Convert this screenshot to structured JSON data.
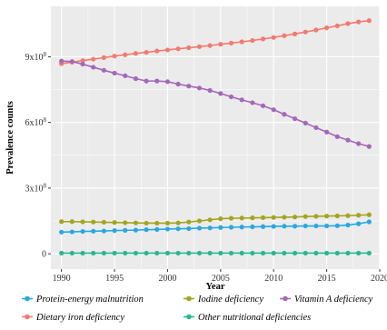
{
  "chart_data": {
    "type": "line",
    "xlabel": "Year",
    "ylabel": "Prevalence counts",
    "xlim": [
      1989,
      2020
    ],
    "ylim": [
      -70000000,
      1130000000
    ],
    "x_ticks": [
      1990,
      1995,
      2000,
      2005,
      2010,
      2015,
      2020
    ],
    "y_ticks": [
      0,
      300000000,
      600000000,
      900000000
    ],
    "y_tick_labels": [
      "0",
      "3x10⁸",
      "6x10⁸",
      "9x10⁸"
    ],
    "grid": true,
    "legend_position": "bottom",
    "x": [
      1990,
      1991,
      1992,
      1993,
      1994,
      1995,
      1996,
      1997,
      1998,
      1999,
      2000,
      2001,
      2002,
      2003,
      2004,
      2005,
      2006,
      2007,
      2008,
      2009,
      2010,
      2011,
      2012,
      2013,
      2014,
      2015,
      2016,
      2017,
      2018,
      2019
    ],
    "series": [
      {
        "name": "Protein-energy malnutrition",
        "color": "#29a8e0",
        "values": [
          99000000,
          100000000,
          102000000,
          103000000,
          104000000,
          106000000,
          107000000,
          108000000,
          110000000,
          111000000,
          113000000,
          114000000,
          115000000,
          117000000,
          118000000,
          120000000,
          121000000,
          122000000,
          123000000,
          124000000,
          125000000,
          126000000,
          126000000,
          127000000,
          127000000,
          127000000,
          128000000,
          131000000,
          137000000,
          146000000
        ]
      },
      {
        "name": "Dietary iron deficiency",
        "color": "#f27a70",
        "values": [
          868000000,
          875000000,
          882000000,
          889000000,
          896000000,
          903000000,
          909000000,
          915000000,
          920000000,
          926000000,
          931000000,
          936000000,
          941000000,
          946000000,
          951000000,
          957000000,
          962000000,
          968000000,
          974000000,
          981000000,
          988000000,
          996000000,
          1004000000,
          1013000000,
          1022000000,
          1032000000,
          1041000000,
          1051000000,
          1059000000,
          1065000000
        ]
      },
      {
        "name": "Iodine deficiency",
        "color": "#a3a51e",
        "values": [
          147000000,
          147000000,
          146000000,
          145000000,
          144000000,
          143000000,
          142000000,
          141000000,
          140000000,
          140000000,
          140000000,
          141000000,
          145000000,
          150000000,
          155000000,
          160000000,
          162000000,
          163000000,
          164000000,
          165000000,
          166000000,
          167000000,
          168000000,
          170000000,
          171000000,
          172000000,
          173000000,
          174000000,
          176000000,
          178000000
        ]
      },
      {
        "name": "Other nutritional deficiencies",
        "color": "#26b78f",
        "values": [
          3000000,
          3000000,
          3000000,
          3000000,
          3000000,
          3000000,
          3000000,
          3000000,
          3000000,
          3000000,
          3000000,
          3000000,
          3000000,
          3000000,
          3000000,
          3000000,
          3000000,
          3000000,
          3000000,
          3000000,
          3000000,
          3000000,
          3000000,
          3000000,
          3000000,
          3000000,
          3000000,
          3000000,
          3000000,
          3000000
        ]
      },
      {
        "name": "Vitamin A deficiency",
        "color": "#a368b8",
        "values": [
          880000000,
          878000000,
          866000000,
          852000000,
          838000000,
          825000000,
          813000000,
          800000000,
          789000000,
          789000000,
          786000000,
          775000000,
          766000000,
          757000000,
          746000000,
          732000000,
          717000000,
          703000000,
          690000000,
          676000000,
          658000000,
          637000000,
          617000000,
          597000000,
          576000000,
          556000000,
          535000000,
          519000000,
          503000000,
          490000000
        ]
      }
    ],
    "legend": [
      {
        "series": "Protein-energy malnutrition",
        "label": "Protein-energy malnutrition"
      },
      {
        "series": "Iodine deficiency",
        "label": "Iodine deficiency"
      },
      {
        "series": "Vitamin A deficiency",
        "label": "Vitamin A deficiency"
      },
      {
        "series": "Dietary iron deficiency",
        "label": "Dietary iron deficiency"
      },
      {
        "series": "Other nutritional deficiencies",
        "label": "Other nutritional deficiencies"
      }
    ],
    "panel_background": "#ebebeb",
    "grid_color": "#ffffff"
  }
}
